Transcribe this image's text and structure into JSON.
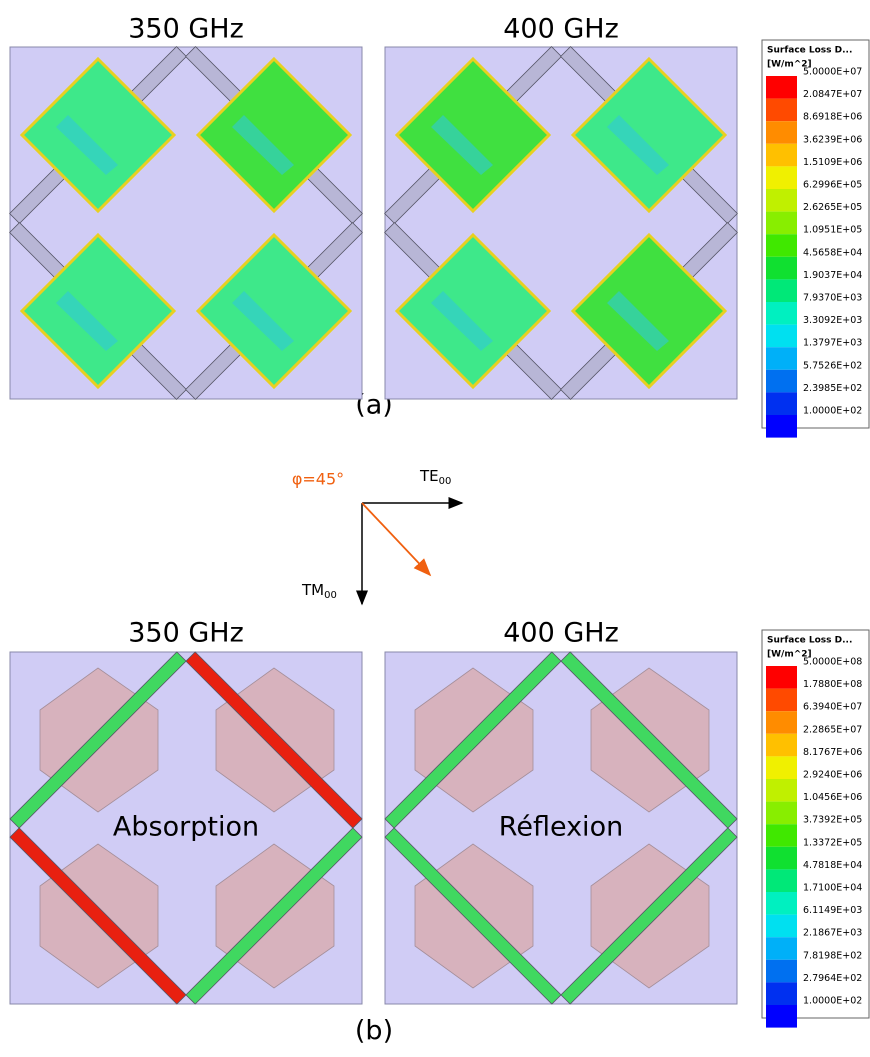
{
  "figure_a": {
    "titles": [
      "350 GHz",
      "400 GHz"
    ],
    "caption": "(a)",
    "legend": {
      "title": "Surface Loss D...",
      "unit": "[W/m^2]",
      "labels": [
        "5.0000E+07",
        "2.0847E+07",
        "8.6918E+06",
        "3.6239E+06",
        "1.5109E+06",
        "6.2996E+05",
        "2.6265E+05",
        "1.0951E+05",
        "4.5658E+04",
        "1.9037E+04",
        "7.9370E+03",
        "3.3092E+03",
        "1.3797E+03",
        "5.7526E+02",
        "2.3985E+02",
        "1.0000E+02"
      ]
    }
  },
  "polarization": {
    "angle": "φ=45°",
    "te": "TE",
    "te_sub": "00",
    "tm": "TM",
    "tm_sub": "00"
  },
  "figure_b": {
    "titles": [
      "350 GHz",
      "400 GHz"
    ],
    "caption": "(b)",
    "annotations": [
      "Absorption",
      "Réflexion"
    ],
    "legend": {
      "title": "Surface Loss D...",
      "unit": "[W/m^2]",
      "labels": [
        "5.0000E+08",
        "1.7880E+08",
        "6.3940E+07",
        "2.2865E+07",
        "8.1767E+06",
        "2.9240E+06",
        "1.0456E+06",
        "3.7392E+05",
        "1.3372E+05",
        "4.7818E+04",
        "1.7100E+04",
        "6.1149E+03",
        "2.1867E+03",
        "7.8198E+02",
        "2.7964E+02",
        "1.0000E+02"
      ]
    }
  },
  "colormap": [
    "#ff0000",
    "#ff4a00",
    "#ff8c00",
    "#ffc000",
    "#f0f000",
    "#c0f000",
    "#88ee00",
    "#40e800",
    "#10e030",
    "#00e878",
    "#00f0c0",
    "#00e0f0",
    "#00b0f8",
    "#0070f0",
    "#0030f0",
    "#0000ff"
  ]
}
